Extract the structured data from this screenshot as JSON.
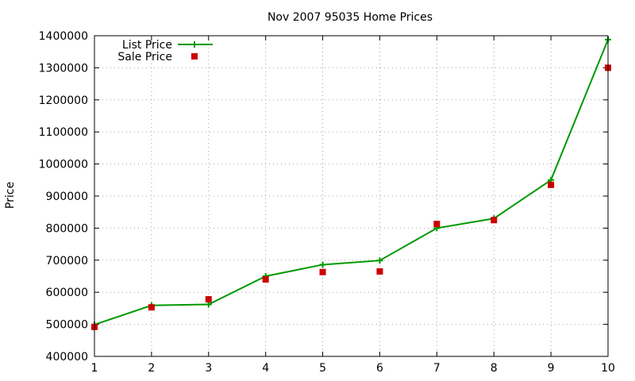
{
  "chart_data": {
    "type": "line",
    "title": "Nov 2007 95035 Home Prices",
    "xlabel": "",
    "ylabel": "Price",
    "x": [
      1,
      2,
      3,
      4,
      5,
      6,
      7,
      8,
      9,
      10
    ],
    "xlim": [
      1,
      10
    ],
    "ylim": [
      400000,
      1400000
    ],
    "x_ticks": [
      "1",
      "2",
      "3",
      "4",
      "5",
      "6",
      "7",
      "8",
      "9",
      "10"
    ],
    "y_ticks": [
      "400000",
      "500000",
      "600000",
      "700000",
      "800000",
      "900000",
      "1000000",
      "1100000",
      "1200000",
      "1300000",
      "1400000"
    ],
    "grid": true,
    "legend_position": "top-left",
    "series": [
      {
        "name": "List Price",
        "style": "line-with-plus-markers",
        "color": "#009900",
        "values": [
          499000,
          559000,
          562000,
          650000,
          686000,
          699000,
          800000,
          830000,
          950000,
          1388000
        ]
      },
      {
        "name": "Sale Price",
        "style": "square-markers",
        "color": "#cc0000",
        "values": [
          492000,
          553000,
          578000,
          640000,
          663000,
          665000,
          813000,
          825000,
          935000,
          1300000
        ]
      }
    ]
  }
}
